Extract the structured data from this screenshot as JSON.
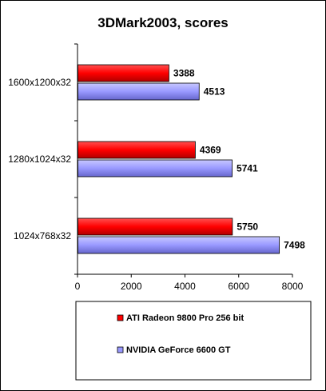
{
  "chart_data": {
    "type": "bar",
    "orientation": "horizontal",
    "title": "3DMark2003, scores",
    "categories": [
      "1600x1200x32",
      "1280x1024x32",
      "1024x768x32"
    ],
    "series": [
      {
        "name": "ATI Radeon 9800 Pro 256 bit",
        "values": [
          3388,
          4369,
          5750
        ],
        "color": "#ff0000"
      },
      {
        "name": "NVIDIA GeForce 6600 GT",
        "values": [
          4513,
          5741,
          7498
        ],
        "color": "#9999ff"
      }
    ],
    "xlim": [
      0,
      8000
    ],
    "xticks": [
      0,
      2000,
      4000,
      6000,
      8000
    ],
    "xlabel": "",
    "ylabel": "",
    "grid": false,
    "legend": "bottom",
    "data_labels": true
  }
}
